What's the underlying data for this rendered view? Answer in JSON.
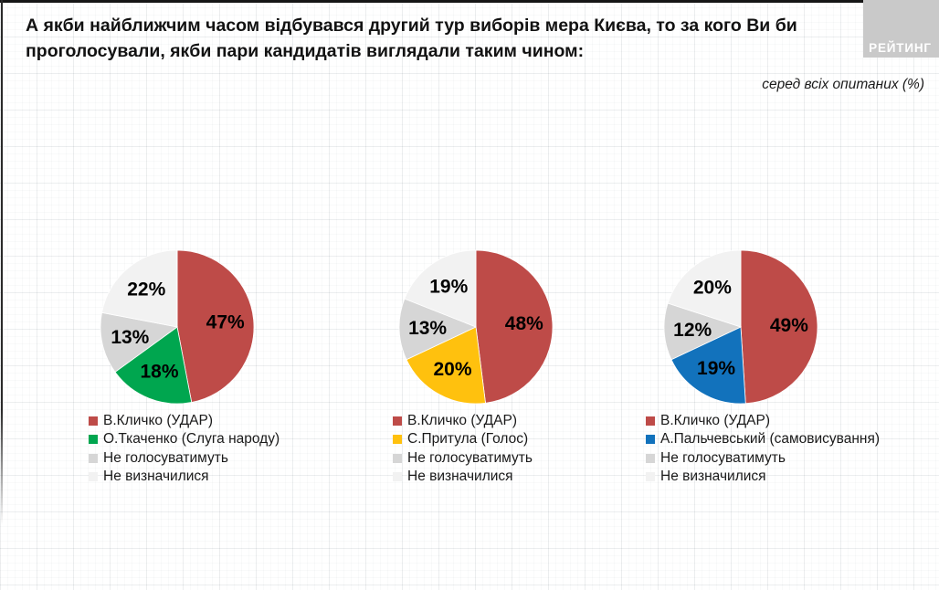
{
  "header": {
    "title": "А якби найближчим часом відбувався другий тур виборів мера Києва, то за кого Ви би проголосували, якби пари кандидатів виглядали таким чином:",
    "subtitle": "серед всіх опитаних (%)",
    "logo_text": "РЕЙТИНГ"
  },
  "style": {
    "red": "#BE4B48",
    "green": "#00A64F",
    "yellow": "#FFC10E",
    "blue": "#1272BC",
    "gray": "#D6D6D6",
    "light_gray": "#F2F2F2",
    "logo_bg": "#C9C9C9",
    "grid_bg": "#FFFFFF"
  },
  "chart_data": [
    {
      "type": "pie",
      "labels": [
        "В.Кличко (УДАР)",
        "О.Ткаченко (Слуга народу)",
        "Не голосуватимуть",
        "Не визначилися"
      ],
      "values": [
        47,
        18,
        13,
        22
      ],
      "colors": [
        "#BE4B48",
        "#00A64F",
        "#D6D6D6",
        "#F2F2F2"
      ],
      "value_suffix": "%",
      "start_angle": "12-oclock",
      "direction": "clockwise",
      "legend_position": "bottom-left"
    },
    {
      "type": "pie",
      "labels": [
        "В.Кличко (УДАР)",
        "С.Притула (Голос)",
        "Не голосуватимуть",
        "Не визначилися"
      ],
      "values": [
        48,
        20,
        13,
        19
      ],
      "colors": [
        "#BE4B48",
        "#FFC10E",
        "#D6D6D6",
        "#F2F2F2"
      ],
      "value_suffix": "%",
      "start_angle": "12-oclock",
      "direction": "clockwise",
      "legend_position": "bottom-left"
    },
    {
      "type": "pie",
      "labels": [
        "В.Кличко (УДАР)",
        "А.Пальчевський (самовисування)",
        "Не голосуватимуть",
        "Не визначилися"
      ],
      "values": [
        49,
        19,
        12,
        20
      ],
      "colors": [
        "#BE4B48",
        "#1272BC",
        "#D6D6D6",
        "#F2F2F2"
      ],
      "value_suffix": "%",
      "start_angle": "12-oclock",
      "direction": "clockwise",
      "legend_position": "bottom-left"
    }
  ]
}
